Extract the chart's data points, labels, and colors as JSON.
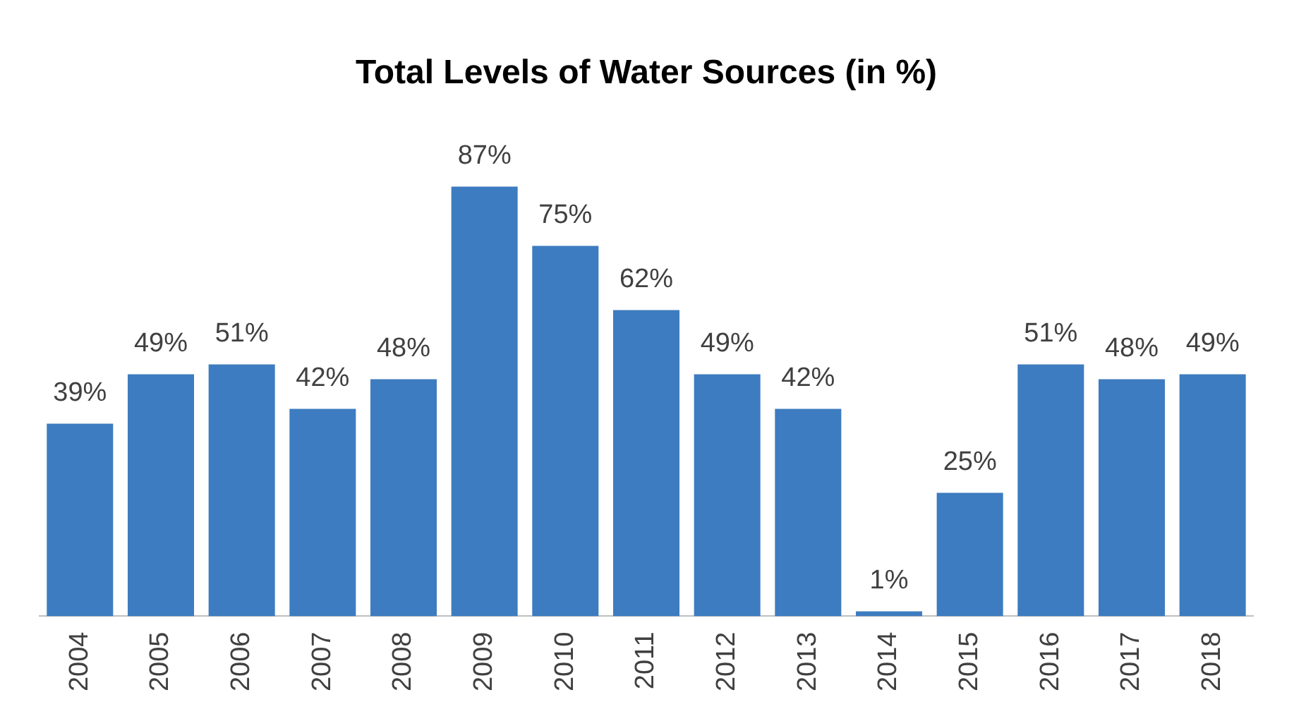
{
  "chart_data": {
    "type": "bar",
    "title": "Total Levels of Water Sources (in %)",
    "categories": [
      "2004",
      "2005",
      "2006",
      "2007",
      "2008",
      "2009",
      "2010",
      "2011",
      "2012",
      "2013",
      "2014",
      "2015",
      "2016",
      "2017",
      "2018"
    ],
    "values": [
      39,
      49,
      51,
      42,
      48,
      87,
      75,
      62,
      49,
      42,
      1,
      25,
      51,
      48,
      49
    ],
    "value_labels": [
      "39%",
      "49%",
      "51%",
      "42%",
      "48%",
      "87%",
      "75%",
      "62%",
      "49%",
      "42%",
      "1%",
      "25%",
      "51%",
      "48%",
      "49%"
    ],
    "color": "#3d7cc0",
    "grid": false,
    "legend": false
  }
}
